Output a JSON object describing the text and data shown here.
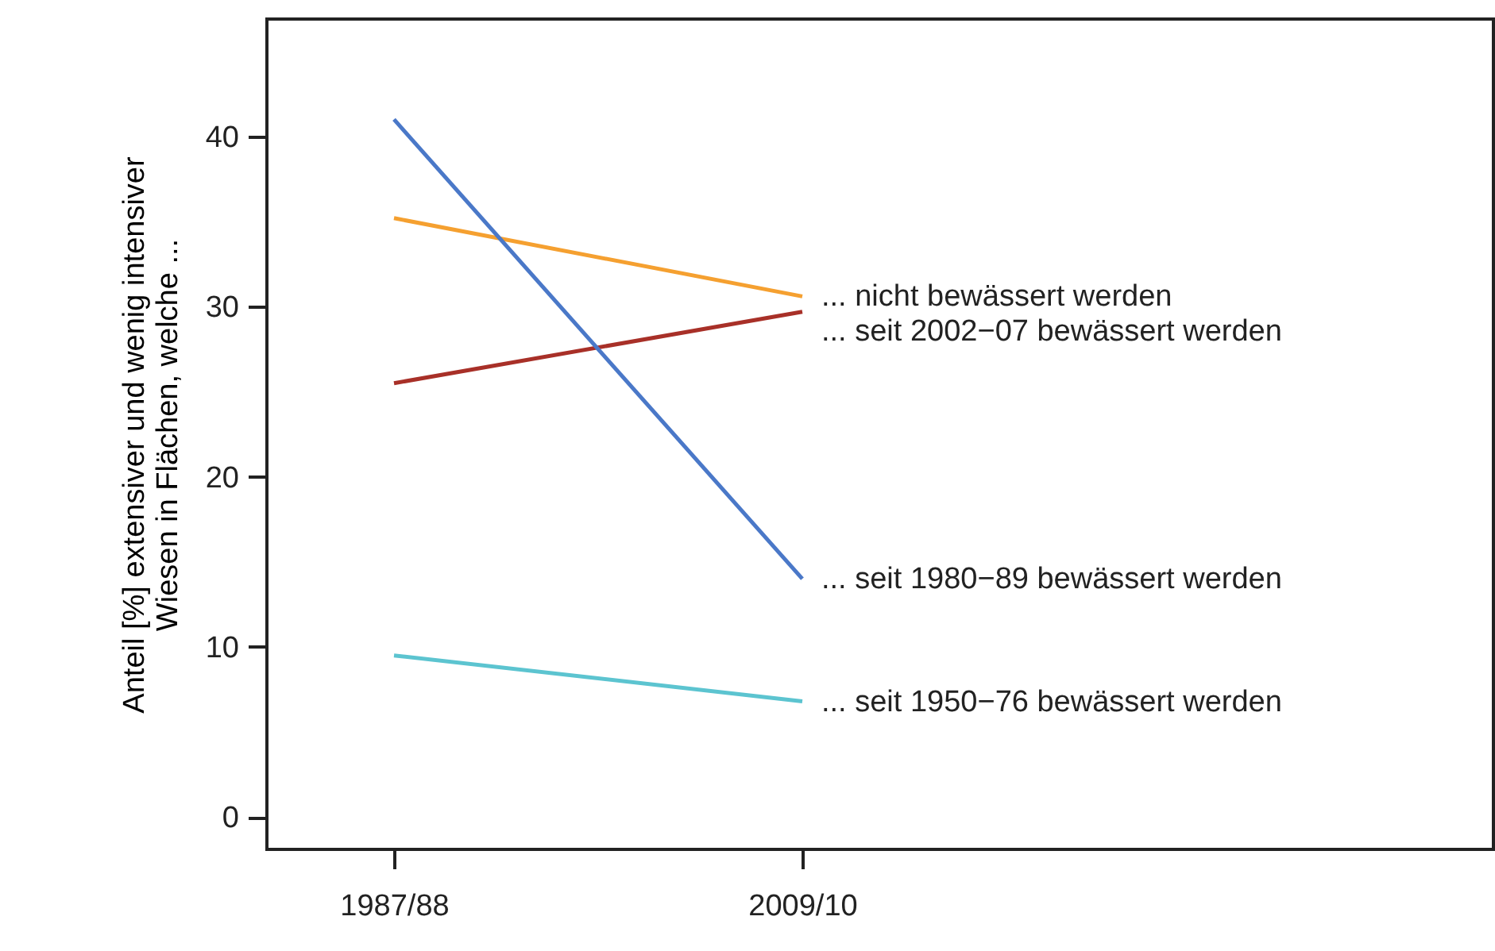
{
  "chart_data": {
    "type": "line",
    "ylabel": "Anteil [%] extensiver und wenig intensiver\nWiesen in Flächen, welche ...",
    "categories": [
      "1987/88",
      "2009/10"
    ],
    "series": [
      {
        "name": "... nicht bewässert werden",
        "color": "#f5a030",
        "values": [
          35.2,
          30.6
        ]
      },
      {
        "name": "... seit 2002−07 bewässert werden",
        "color": "#a83028",
        "values": [
          25.5,
          29.7
        ]
      },
      {
        "name": "... seit 1980−89 bewässert werden",
        "color": "#4a78c8",
        "values": [
          41.0,
          14.0
        ]
      },
      {
        "name": "... seit 1950−76 bewässert werden",
        "color": "#5cc4d0",
        "values": [
          9.5,
          6.8
        ]
      }
    ],
    "ylim": [
      -1.9,
      46.9
    ],
    "yticks": [
      0,
      10,
      20,
      30,
      40
    ],
    "grid": false,
    "marker": "none",
    "line_style": "solid"
  }
}
